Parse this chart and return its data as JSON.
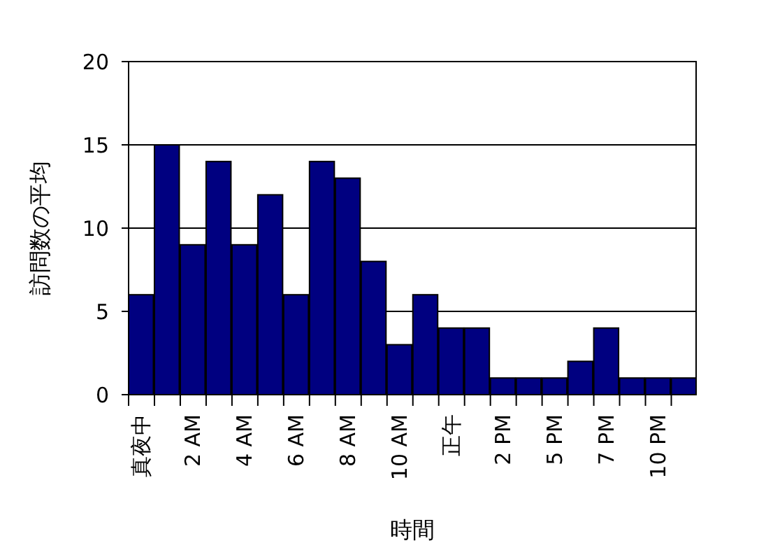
{
  "chart_data": {
    "type": "bar",
    "xlabel": "時間",
    "ylabel": "訪問数の平均",
    "categories": [
      "真夜中",
      null,
      "2 AM",
      null,
      "4 AM",
      null,
      "6 AM",
      null,
      "8 AM",
      null,
      "10 AM",
      null,
      "正午",
      null,
      "2 PM",
      null,
      "5 PM",
      null,
      "7 PM",
      null,
      "10 PM",
      null
    ],
    "values": [
      6,
      15,
      9,
      14,
      9,
      12,
      6,
      14,
      13,
      8,
      3,
      6,
      4,
      4,
      1,
      1,
      1,
      2,
      4,
      1,
      1,
      1
    ],
    "color": "#000080",
    "ylim": [
      0,
      20
    ],
    "yticks": [
      0,
      5,
      10,
      15,
      20
    ],
    "grid": "y"
  }
}
